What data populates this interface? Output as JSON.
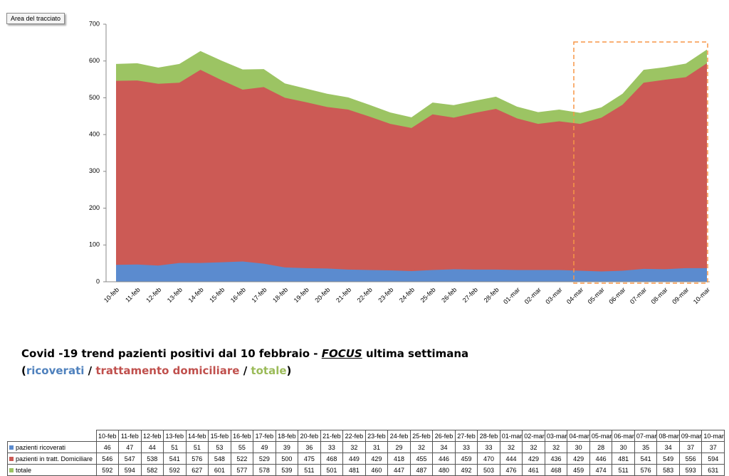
{
  "tooltip": "Area del tracciato",
  "caption": {
    "line1": [
      "Covid -19 trend pazienti positivi dal 10 febbraio - ",
      "FOCUS",
      " ultima settimana"
    ],
    "line2": [
      "(",
      "ricoverati",
      " / ",
      "trattamento domiciliare",
      " / ",
      "totale",
      ")"
    ]
  },
  "chart_data": {
    "type": "area",
    "categories": [
      "10-feb",
      "11-feb",
      "12-feb",
      "13-feb",
      "14-feb",
      "15-feb",
      "16-feb",
      "17-feb",
      "18-feb",
      "19-feb",
      "20-feb",
      "21-feb",
      "22-feb",
      "23-feb",
      "24-feb",
      "25-feb",
      "26-feb",
      "27-feb",
      "28-feb",
      "01-mar",
      "02-mar",
      "03-mar",
      "04-mar",
      "05-mar",
      "06-mar",
      "07-mar",
      "08-mar",
      "09-mar",
      "10-mar"
    ],
    "series": [
      {
        "name": "pazienti ricoverati",
        "color": "#5b8bcf",
        "values": [
          46,
          47,
          44,
          51,
          51,
          53,
          55,
          49,
          39,
          37,
          36,
          33,
          32,
          31,
          29,
          32,
          34,
          33,
          33,
          32,
          32,
          32,
          30,
          28,
          30,
          35,
          34,
          37,
          37
        ]
      },
      {
        "name": "pazienti in tratt. Domiciliare",
        "color": "#cc5a55",
        "values": [
          546,
          547,
          538,
          541,
          576,
          548,
          522,
          529,
          500,
          488,
          475,
          468,
          449,
          429,
          418,
          455,
          446,
          459,
          470,
          444,
          429,
          436,
          429,
          446,
          481,
          541,
          549,
          556,
          594
        ]
      },
      {
        "name": "totale",
        "color": "#9cc463",
        "values": [
          592,
          594,
          582,
          592,
          627,
          601,
          577,
          578,
          539,
          525,
          511,
          501,
          481,
          460,
          447,
          487,
          480,
          492,
          503,
          476,
          461,
          468,
          459,
          474,
          511,
          576,
          583,
          593,
          631
        ]
      }
    ],
    "ylim": [
      0,
      700
    ],
    "yticks": [
      0,
      100,
      200,
      300,
      400,
      500,
      600,
      700
    ],
    "grid": false
  },
  "table": {
    "columns": [
      "10-feb",
      "11-feb",
      "12-feb",
      "13-feb",
      "14-feb",
      "15-feb",
      "16-feb",
      "17-feb",
      "18-feb",
      "20-feb",
      "21-feb",
      "22-feb",
      "23-feb",
      "24-feb",
      "25-feb",
      "26-feb",
      "27-feb",
      "28-feb",
      "01-mar",
      "02-mar",
      "03-mar",
      "04-mar",
      "05-mar",
      "06-mar",
      "07-mar",
      "08-mar",
      "09-mar",
      "10-mar"
    ],
    "rows": [
      {
        "values": [
          46,
          47,
          44,
          51,
          51,
          53,
          55,
          49,
          39,
          36,
          33,
          32,
          31,
          29,
          32,
          34,
          33,
          33,
          32,
          32,
          32,
          30,
          28,
          30,
          35,
          34,
          37,
          37
        ]
      },
      {
        "values": [
          546,
          547,
          538,
          541,
          576,
          548,
          522,
          529,
          500,
          475,
          468,
          449,
          429,
          418,
          455,
          446,
          459,
          470,
          444,
          429,
          436,
          429,
          446,
          481,
          541,
          549,
          556,
          594
        ]
      },
      {
        "values": [
          592,
          594,
          582,
          592,
          627,
          601,
          577,
          578,
          539,
          511,
          501,
          481,
          460,
          447,
          487,
          480,
          492,
          503,
          476,
          461,
          468,
          459,
          474,
          511,
          576,
          583,
          593,
          631
        ]
      }
    ]
  }
}
